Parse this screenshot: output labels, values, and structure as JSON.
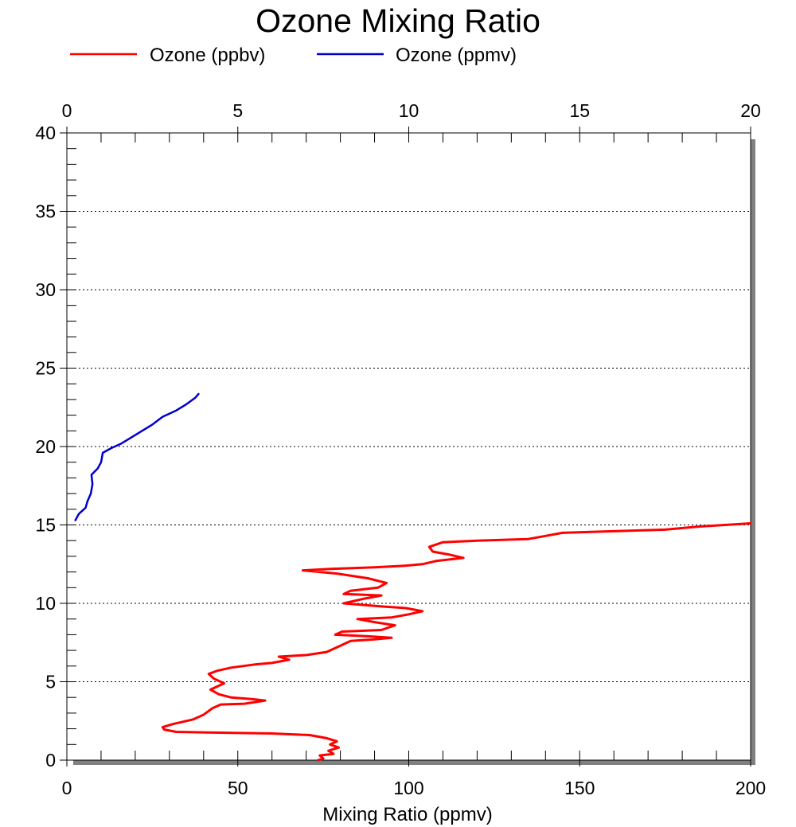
{
  "chart_data": {
    "type": "line",
    "title": "Ozone Mixing Ratio",
    "xlabel": "Mixing Ratio (ppmv)",
    "ylabel": "",
    "xlim": [
      0,
      200
    ],
    "x2lim": [
      0,
      20
    ],
    "ylim": [
      0,
      40
    ],
    "x_ticks": [
      "0",
      "50",
      "100",
      "150",
      "200"
    ],
    "x2_ticks": [
      "0",
      "5",
      "10",
      "15",
      "20"
    ],
    "y_ticks": [
      "0",
      "5",
      "10",
      "15",
      "20",
      "25",
      "30",
      "35",
      "40"
    ],
    "grid": "horizontal dotted",
    "legend_position": "top",
    "series": [
      {
        "name": "Ozone (ppbv)",
        "color": "#ff0000",
        "axis": "bottom",
        "points": [
          [
            73.5,
            0.0
          ],
          [
            75.0,
            0.1
          ],
          [
            74.0,
            0.3
          ],
          [
            78.0,
            0.4
          ],
          [
            76.5,
            0.6
          ],
          [
            79.5,
            0.8
          ],
          [
            77.0,
            1.0
          ],
          [
            79.0,
            1.2
          ],
          [
            76.0,
            1.4
          ],
          [
            71.0,
            1.6
          ],
          [
            60.0,
            1.7
          ],
          [
            45.0,
            1.75
          ],
          [
            32.0,
            1.8
          ],
          [
            28.5,
            1.95
          ],
          [
            28.0,
            2.1
          ],
          [
            31.0,
            2.3
          ],
          [
            37.0,
            2.6
          ],
          [
            40.0,
            2.9
          ],
          [
            42.5,
            3.3
          ],
          [
            45.0,
            3.55
          ],
          [
            52.0,
            3.6
          ],
          [
            58.0,
            3.8
          ],
          [
            54.0,
            3.9
          ],
          [
            48.0,
            4.0
          ],
          [
            44.5,
            4.2
          ],
          [
            42.0,
            4.5
          ],
          [
            46.0,
            4.9
          ],
          [
            43.0,
            5.2
          ],
          [
            41.5,
            5.5
          ],
          [
            44.0,
            5.7
          ],
          [
            48.0,
            5.9
          ],
          [
            55.0,
            6.1
          ],
          [
            60.0,
            6.2
          ],
          [
            65.0,
            6.4
          ],
          [
            62.0,
            6.6
          ],
          [
            70.0,
            6.7
          ],
          [
            76.0,
            6.9
          ],
          [
            80.0,
            7.3
          ],
          [
            83.0,
            7.6
          ],
          [
            90.0,
            7.7
          ],
          [
            95.0,
            7.8
          ],
          [
            88.0,
            7.9
          ],
          [
            78.5,
            8.0
          ],
          [
            80.5,
            8.2
          ],
          [
            92.0,
            8.3
          ],
          [
            96.0,
            8.6
          ],
          [
            90.0,
            8.8
          ],
          [
            85.0,
            9.0
          ],
          [
            95.0,
            9.1
          ],
          [
            100.0,
            9.3
          ],
          [
            104.0,
            9.5
          ],
          [
            99.0,
            9.7
          ],
          [
            92.0,
            9.8
          ],
          [
            81.0,
            10.0
          ],
          [
            87.0,
            10.3
          ],
          [
            92.0,
            10.5
          ],
          [
            81.0,
            10.6
          ],
          [
            83.0,
            10.8
          ],
          [
            91.0,
            11.0
          ],
          [
            93.5,
            11.3
          ],
          [
            88.0,
            11.6
          ],
          [
            79.0,
            11.9
          ],
          [
            69.0,
            12.1
          ],
          [
            77.0,
            12.2
          ],
          [
            90.0,
            12.3
          ],
          [
            99.0,
            12.4
          ],
          [
            104.0,
            12.5
          ],
          [
            108.0,
            12.7
          ],
          [
            116.0,
            12.9
          ],
          [
            112.0,
            13.1
          ],
          [
            107.0,
            13.3
          ],
          [
            106.0,
            13.6
          ],
          [
            110.0,
            13.9
          ],
          [
            120.0,
            14.0
          ],
          [
            135.0,
            14.1
          ],
          [
            140.0,
            14.3
          ],
          [
            145.0,
            14.5
          ],
          [
            160.0,
            14.6
          ],
          [
            175.0,
            14.7
          ],
          [
            185.0,
            14.9
          ],
          [
            200.0,
            15.1
          ]
        ]
      },
      {
        "name": "Ozone (ppmv)",
        "color": "#0000cc",
        "axis": "top",
        "points": [
          [
            0.25,
            15.3
          ],
          [
            0.35,
            15.7
          ],
          [
            0.55,
            16.1
          ],
          [
            0.6,
            16.5
          ],
          [
            0.7,
            17.0
          ],
          [
            0.75,
            17.6
          ],
          [
            0.72,
            18.2
          ],
          [
            0.9,
            18.6
          ],
          [
            1.0,
            19.0
          ],
          [
            1.05,
            19.6
          ],
          [
            1.3,
            19.9
          ],
          [
            1.6,
            20.2
          ],
          [
            1.9,
            20.6
          ],
          [
            2.2,
            21.0
          ],
          [
            2.5,
            21.4
          ],
          [
            2.8,
            21.9
          ],
          [
            3.2,
            22.3
          ],
          [
            3.5,
            22.7
          ],
          [
            3.75,
            23.1
          ],
          [
            3.85,
            23.35
          ]
        ]
      }
    ]
  }
}
